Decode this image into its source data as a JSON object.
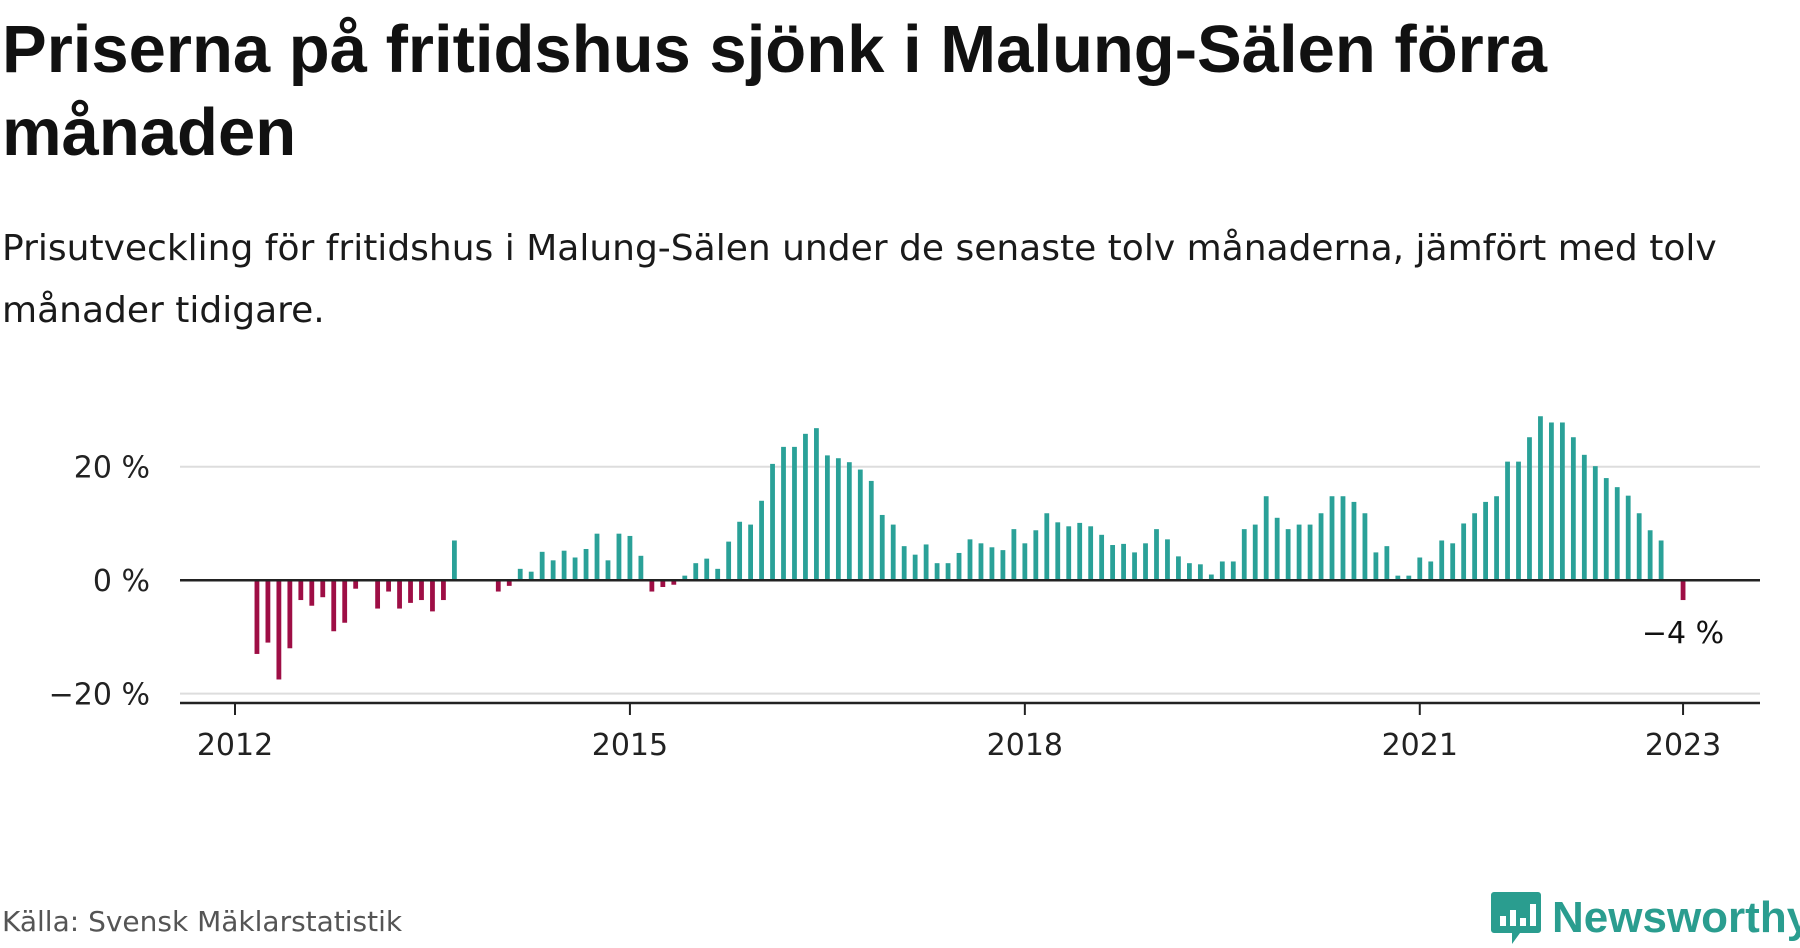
{
  "header": {
    "title": "Priserna på fritidshus sjönk i Malung-Sälen förra månaden",
    "subtitle": "Prisutveckling för fritidshus i Malung-Sälen under de senaste tolv månaderna, jämfört med tolv månader tidigare."
  },
  "footer": {
    "source": "Källa: Svensk Mäklarstatistik",
    "brand": "Newsworthy"
  },
  "colors": {
    "positive": "#2aa198",
    "negative": "#9e0e45",
    "axis": "#222222",
    "grid": "#dddddd",
    "brand": "#2a9d8f"
  },
  "icons": {
    "brand_logo": "bar-chart-speech-bubble-icon"
  },
  "chart_data": {
    "type": "bar",
    "x_start": "2012-01",
    "x_end": "2023-03",
    "x_unit": "month",
    "ylim": [
      -22,
      30
    ],
    "yticks": [
      -20,
      0,
      20
    ],
    "ytick_labels": [
      "−20 %",
      "0 %",
      "20 %"
    ],
    "xticks": [
      "2012-01",
      "2015-01",
      "2018-01",
      "2021-01",
      "2023-01"
    ],
    "xtick_labels": [
      "2012",
      "2015",
      "2018",
      "2021",
      "2023"
    ],
    "grid": "horizontal",
    "series": [
      {
        "x": [
          "2012-03",
          "2012-04",
          "2012-05",
          "2012-06",
          "2012-07",
          "2012-08",
          "2012-09",
          "2012-10",
          "2012-11",
          "2012-12",
          "2013-02",
          "2013-03",
          "2013-04",
          "2013-05",
          "2013-06",
          "2013-07",
          "2013-08",
          "2013-09",
          "2014-01",
          "2014-02",
          "2014-03",
          "2014-04",
          "2014-05",
          "2014-06",
          "2014-07",
          "2014-08",
          "2014-09",
          "2014-10",
          "2014-11",
          "2014-12",
          "2015-01",
          "2015-02",
          "2015-03",
          "2015-04",
          "2015-05",
          "2015-06",
          "2015-07",
          "2015-08",
          "2015-09",
          "2015-10",
          "2015-11",
          "2015-12",
          "2016-01",
          "2016-02",
          "2016-03",
          "2016-04",
          "2016-05",
          "2016-06",
          "2016-07",
          "2016-08",
          "2016-09",
          "2016-10",
          "2016-11",
          "2016-12",
          "2017-01",
          "2017-02",
          "2017-03",
          "2017-04",
          "2017-05",
          "2017-06",
          "2017-07",
          "2017-08",
          "2017-09",
          "2017-10",
          "2017-11",
          "2017-12",
          "2018-01",
          "2018-02",
          "2018-03",
          "2018-04",
          "2018-05",
          "2018-06",
          "2018-07",
          "2018-08",
          "2018-09",
          "2018-10",
          "2018-11",
          "2018-12",
          "2019-01",
          "2019-02",
          "2019-03",
          "2019-04",
          "2019-05",
          "2019-06",
          "2019-07",
          "2019-08",
          "2019-09",
          "2019-10",
          "2019-11",
          "2019-12",
          "2020-01",
          "2020-02",
          "2020-03",
          "2020-04",
          "2020-05",
          "2020-06",
          "2020-07",
          "2020-08",
          "2020-09",
          "2020-10",
          "2020-11",
          "2020-12",
          "2021-01",
          "2021-02",
          "2021-03",
          "2021-04",
          "2021-05",
          "2021-06",
          "2021-07",
          "2021-08",
          "2021-09",
          "2021-10",
          "2021-11",
          "2021-12",
          "2022-01",
          "2022-02",
          "2022-03",
          "2022-04",
          "2022-05",
          "2022-06",
          "2022-07",
          "2022-08",
          "2022-09",
          "2022-10",
          "2022-11",
          "2022-12",
          "2023-01"
        ],
        "values": [
          -13,
          -11,
          -17.5,
          -12,
          -3.5,
          -4.5,
          -3,
          -9,
          -7.5,
          -1.5,
          -5,
          -2,
          -5,
          -4,
          -3.5,
          -5.5,
          -3.5,
          7,
          -2,
          -1,
          2,
          1.5,
          5,
          3.5,
          5.2,
          4,
          5.5,
          8.2,
          3.5,
          8.2,
          7.8,
          4.3,
          -2,
          -1.2,
          -0.8,
          0.8,
          3,
          3.8,
          2,
          6.8,
          10.3,
          9.8,
          14,
          20.5,
          23.5,
          23.5,
          25.8,
          26.8,
          22,
          21.5,
          20.8,
          19.5,
          17.5,
          11.5,
          9.8,
          6,
          4.5,
          6.3,
          3,
          3,
          4.8,
          7.2,
          6.5,
          5.8,
          5.3,
          9,
          6.5,
          8.8,
          11.8,
          10.2,
          9.5,
          10.1,
          9.5,
          8,
          6.2,
          6.4,
          4.9,
          6.5,
          9,
          7.2,
          4.2,
          3,
          2.8,
          1,
          3.3,
          3.3,
          9,
          9.8,
          14.8,
          11,
          9,
          9.8,
          9.8,
          11.8,
          14.8,
          14.8,
          13.8,
          11.8,
          4.9,
          6,
          0.8,
          0.8,
          4,
          3.3,
          7,
          6.5,
          10,
          11.8,
          13.8,
          14.8,
          20.9,
          20.9,
          25.2,
          28.9,
          27.8,
          27.8,
          25.2,
          22.1,
          20.1,
          18,
          16.4,
          14.9,
          11.8,
          8.8,
          7,
          0,
          -3.5
        ]
      }
    ],
    "annotations": [
      {
        "x": "2023-01",
        "text": "−4 %"
      }
    ]
  }
}
